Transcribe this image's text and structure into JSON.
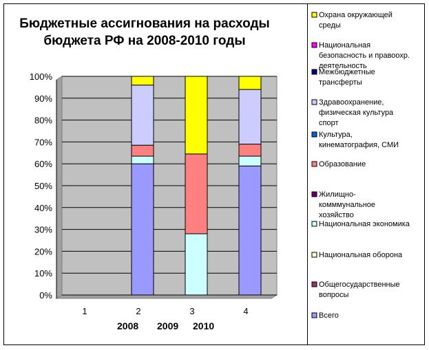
{
  "chart_data": {
    "type": "bar",
    "stacked": "percent",
    "title_line1": "Бюджетные ассигнования на расходы",
    "title_line2": "бюджета РФ на 2008-2010 годы",
    "categories": [
      "1",
      "2",
      "3",
      "4"
    ],
    "year_labels": [
      "2008",
      "2009",
      "2010"
    ],
    "y_ticks": [
      "0%",
      "10%",
      "20%",
      "30%",
      "40%",
      "50%",
      "60%",
      "70%",
      "80%",
      "90%",
      "100%"
    ],
    "ylim": [
      0,
      100
    ],
    "grid": true,
    "legend_position": "right",
    "series": [
      {
        "name": "Всего",
        "color": "#9999FF",
        "values": [
          0,
          60,
          0,
          59
        ]
      },
      {
        "name": "Общегосударственные вопросы",
        "color": "#993366",
        "values": [
          0,
          0,
          0,
          0
        ]
      },
      {
        "name": "Национальная оборона",
        "color": "#FFFFCC",
        "values": [
          0,
          0,
          0,
          0
        ]
      },
      {
        "name": "Национальная экономика",
        "color": "#CCFFFF",
        "values": [
          0,
          3.5,
          28,
          4.5
        ]
      },
      {
        "name": "Жилищно-комммунальное хозяйство",
        "color": "#660066",
        "values": [
          0,
          0,
          0,
          0
        ]
      },
      {
        "name": "Образование",
        "color": "#FF8080",
        "values": [
          0,
          5,
          36.5,
          5.5
        ]
      },
      {
        "name": "Культура, кинематография, СМИ",
        "color": "#0066CC",
        "values": [
          0,
          0,
          0,
          0
        ]
      },
      {
        "name": "Здравоохранение, физическая культура спорт",
        "color": "#CCCCFF",
        "values": [
          0,
          27.5,
          0,
          25
        ]
      },
      {
        "name": "Межбюджетные трансферты",
        "color": "#000080",
        "values": [
          0,
          0,
          0,
          0
        ]
      },
      {
        "name": "Национальная безопасность и правоохр. деятельность",
        "color": "#FF00FF",
        "values": [
          0,
          0,
          0,
          0
        ]
      },
      {
        "name": "Охрана окружающей среды",
        "color": "#FFFF00",
        "values": [
          0,
          4,
          35.5,
          6
        ]
      }
    ],
    "legend_items": [
      {
        "lines": [
          "Охрана окружающей",
          "среды"
        ],
        "color": "#FFFF00"
      },
      {
        "lines": [
          "Национальная",
          "безопасность и правоохр.",
          "деятельность"
        ],
        "color": "#FF00FF"
      },
      {
        "lines": [
          "Межбюджетные",
          "трансферты"
        ],
        "color": "#000080"
      },
      {
        "lines": [
          "Здравоохранение,",
          "физическая культура",
          "спорт"
        ],
        "color": "#CCCCFF"
      },
      {
        "lines": [
          "Культура,",
          "кинематография, СМИ"
        ],
        "color": "#0066CC"
      },
      {
        "lines": [
          "Образование"
        ],
        "color": "#FF8080"
      },
      {
        "lines": [
          "Жилищно-",
          "комммунальное",
          "хозяйство"
        ],
        "color": "#660066"
      },
      {
        "lines": [
          "Национальная экономика"
        ],
        "color": "#CCFFFF"
      },
      {
        "lines": [
          "Национальная оборона"
        ],
        "color": "#FFFFCC"
      },
      {
        "lines": [
          "Общегосударственные",
          "вопросы"
        ],
        "color": "#993366"
      },
      {
        "lines": [
          "Всего"
        ],
        "color": "#9999FF"
      }
    ],
    "plot_background": "#C0C0C0"
  }
}
